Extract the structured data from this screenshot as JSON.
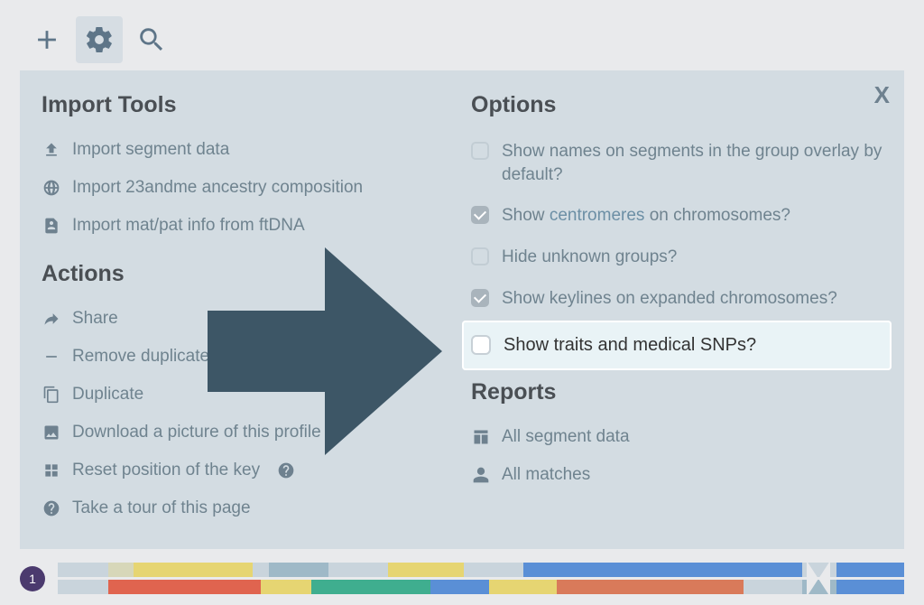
{
  "toolbar": {
    "add": "add",
    "settings": "settings",
    "search": "search"
  },
  "panel": {
    "close": "X",
    "import": {
      "title": "Import Tools",
      "seg": "Import segment data",
      "anc": "Import 23andme ancestry composition",
      "ft": "Import mat/pat info from ftDNA"
    },
    "actions": {
      "title": "Actions",
      "share": "Share",
      "remove": "Remove duplicates",
      "dup": "Duplicate",
      "pic": "Download a picture of this profile",
      "reset": "Reset position of the key",
      "tour": "Take a tour of this page"
    },
    "options": {
      "title": "Options",
      "names_a": "Show names on segments in the group overlay by default?",
      "cent_a": "Show ",
      "cent_link": "centromeres",
      "cent_b": " on chromosomes?",
      "hide": "Hide unknown groups?",
      "keylines": "Show keylines on expanded chromosomes?",
      "traits": "Show traits and medical SNPs?",
      "names_checked": false,
      "cent_checked": true,
      "hide_checked": false,
      "keylines_checked": true,
      "traits_checked": false
    },
    "reports": {
      "title": "Reports",
      "seg": "All segment data",
      "matches": "All matches"
    }
  },
  "chromosome": {
    "number": "1",
    "top_segments": [
      {
        "w": 6,
        "c": "#c9d4dc"
      },
      {
        "w": 3,
        "c": "#d7d7b9"
      },
      {
        "w": 14,
        "c": "#e6d572"
      },
      {
        "w": 2,
        "c": "#c9d4dc"
      },
      {
        "w": 7,
        "c": "#9fb9c7"
      },
      {
        "w": 7,
        "c": "#c9d4dc"
      },
      {
        "w": 9,
        "c": "#e6d572"
      },
      {
        "w": 7,
        "c": "#c9d4dc"
      },
      {
        "w": 33,
        "c": "#5a8fd6"
      },
      {
        "w": 4,
        "c": "#c9d4dc"
      },
      {
        "w": 8,
        "c": "#5a8fd6"
      }
    ],
    "bottom_segments": [
      {
        "w": 6,
        "c": "#c9d4dc"
      },
      {
        "w": 18,
        "c": "#e0644f"
      },
      {
        "w": 6,
        "c": "#e6d572"
      },
      {
        "w": 14,
        "c": "#3fae8f"
      },
      {
        "w": 7,
        "c": "#5a8fd6"
      },
      {
        "w": 8,
        "c": "#e6d572"
      },
      {
        "w": 22,
        "c": "#d97a5a"
      },
      {
        "w": 7,
        "c": "#c9d4dc"
      },
      {
        "w": 4,
        "c": "#9fb9c7"
      },
      {
        "w": 8,
        "c": "#5a8fd6"
      }
    ]
  }
}
